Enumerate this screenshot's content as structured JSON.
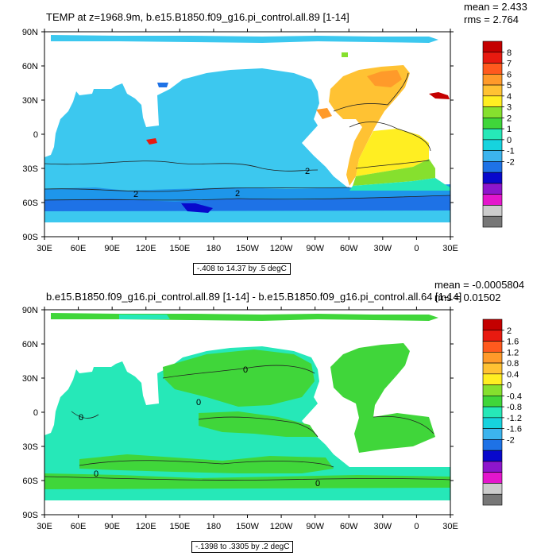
{
  "charts": {
    "top": {
      "title": "TEMP at z=1968.9m, b.e15.B1850.f09_g16.pi_control.all.89 [1-14]",
      "stats": {
        "mean": "mean = 2.433",
        "rms": "rms = 2.764"
      },
      "range_label": "-.408 to 14.37 by .5 degC",
      "colorbar_labels": [
        "8",
        "7",
        "6",
        "5",
        "4",
        "3",
        "2",
        "1",
        "0",
        "-1",
        "-2"
      ],
      "contour_labels": [
        "2",
        "2",
        "2"
      ]
    },
    "bottom": {
      "title": "b.e15.B1850.f09_g16.pi_control.all.89 [1-14] - b.e15.B1850.f09_g16.pi_control.all.64 [1-14]",
      "stats": {
        "mean": "mean = -0.0005804",
        "rms": "rms = 0.01502"
      },
      "range_label": "-.1398 to .3305 by .2 degC",
      "colorbar_labels": [
        "2",
        "1.6",
        "1.2",
        "0.8",
        "0.4",
        "0",
        "-0.4",
        "-0.8",
        "-1.2",
        "-1.6",
        "-2"
      ],
      "contour_labels": [
        "0",
        "0",
        "0",
        "0",
        "0"
      ]
    }
  },
  "chart_data": [
    {
      "type": "heatmap",
      "title": "TEMP at z=1968.9m, b.e15.B1850.f09_g16.pi_control.all.89 [1-14]",
      "xlabel": "",
      "ylabel": "",
      "x_ticks": [
        "30E",
        "60E",
        "90E",
        "120E",
        "150E",
        "180",
        "150W",
        "120W",
        "90W",
        "60W",
        "30W",
        "0",
        "30E"
      ],
      "y_ticks": [
        "90N",
        "60N",
        "30N",
        "0",
        "30S",
        "60S",
        "90S"
      ],
      "colorbar": {
        "levels": [
          8,
          7,
          6,
          5,
          4,
          3,
          2,
          1,
          0,
          -1,
          -2
        ],
        "colors": [
          "#c40000",
          "#e81a10",
          "#ff5a1e",
          "#ff9a2a",
          "#ffc233",
          "#ffee22",
          "#86e02e",
          "#40d63a",
          "#26e8b8",
          "#16d3de",
          "#3cb4ee",
          "#1e72e6",
          "#0808cc",
          "#8e16cc",
          "#e416cc",
          "#cccccc",
          "#777777"
        ]
      },
      "units": "degC",
      "stats": {
        "mean": 2.433,
        "rms": 2.764
      },
      "data_range": [
        -0.408,
        14.37
      ],
      "contour_interval": 0.5
    },
    {
      "type": "heatmap",
      "title": "b.e15.B1850.f09_g16.pi_control.all.89 [1-14] - b.e15.B1850.f09_g16.pi_control.all.64 [1-14]",
      "xlabel": "",
      "ylabel": "",
      "x_ticks": [
        "30E",
        "60E",
        "90E",
        "120E",
        "150E",
        "180",
        "150W",
        "120W",
        "90W",
        "60W",
        "30W",
        "0",
        "30E"
      ],
      "y_ticks": [
        "90N",
        "60N",
        "30N",
        "0",
        "30S",
        "60S",
        "90S"
      ],
      "colorbar": {
        "levels": [
          2,
          1.6,
          1.2,
          0.8,
          0.4,
          0,
          -0.4,
          -0.8,
          -1.2,
          -1.6,
          -2
        ],
        "colors": [
          "#c40000",
          "#e81a10",
          "#ff5a1e",
          "#ff9a2a",
          "#ffc233",
          "#ffee22",
          "#86e02e",
          "#40d63a",
          "#26e8b8",
          "#16d3de",
          "#3cb4ee",
          "#1e72e6",
          "#0808cc",
          "#8e16cc",
          "#e416cc",
          "#cccccc",
          "#777777"
        ]
      },
      "units": "degC",
      "stats": {
        "mean": -0.0005804,
        "rms": 0.01502
      },
      "data_range": [
        -0.1398,
        0.3305
      ],
      "contour_interval": 0.2
    }
  ]
}
